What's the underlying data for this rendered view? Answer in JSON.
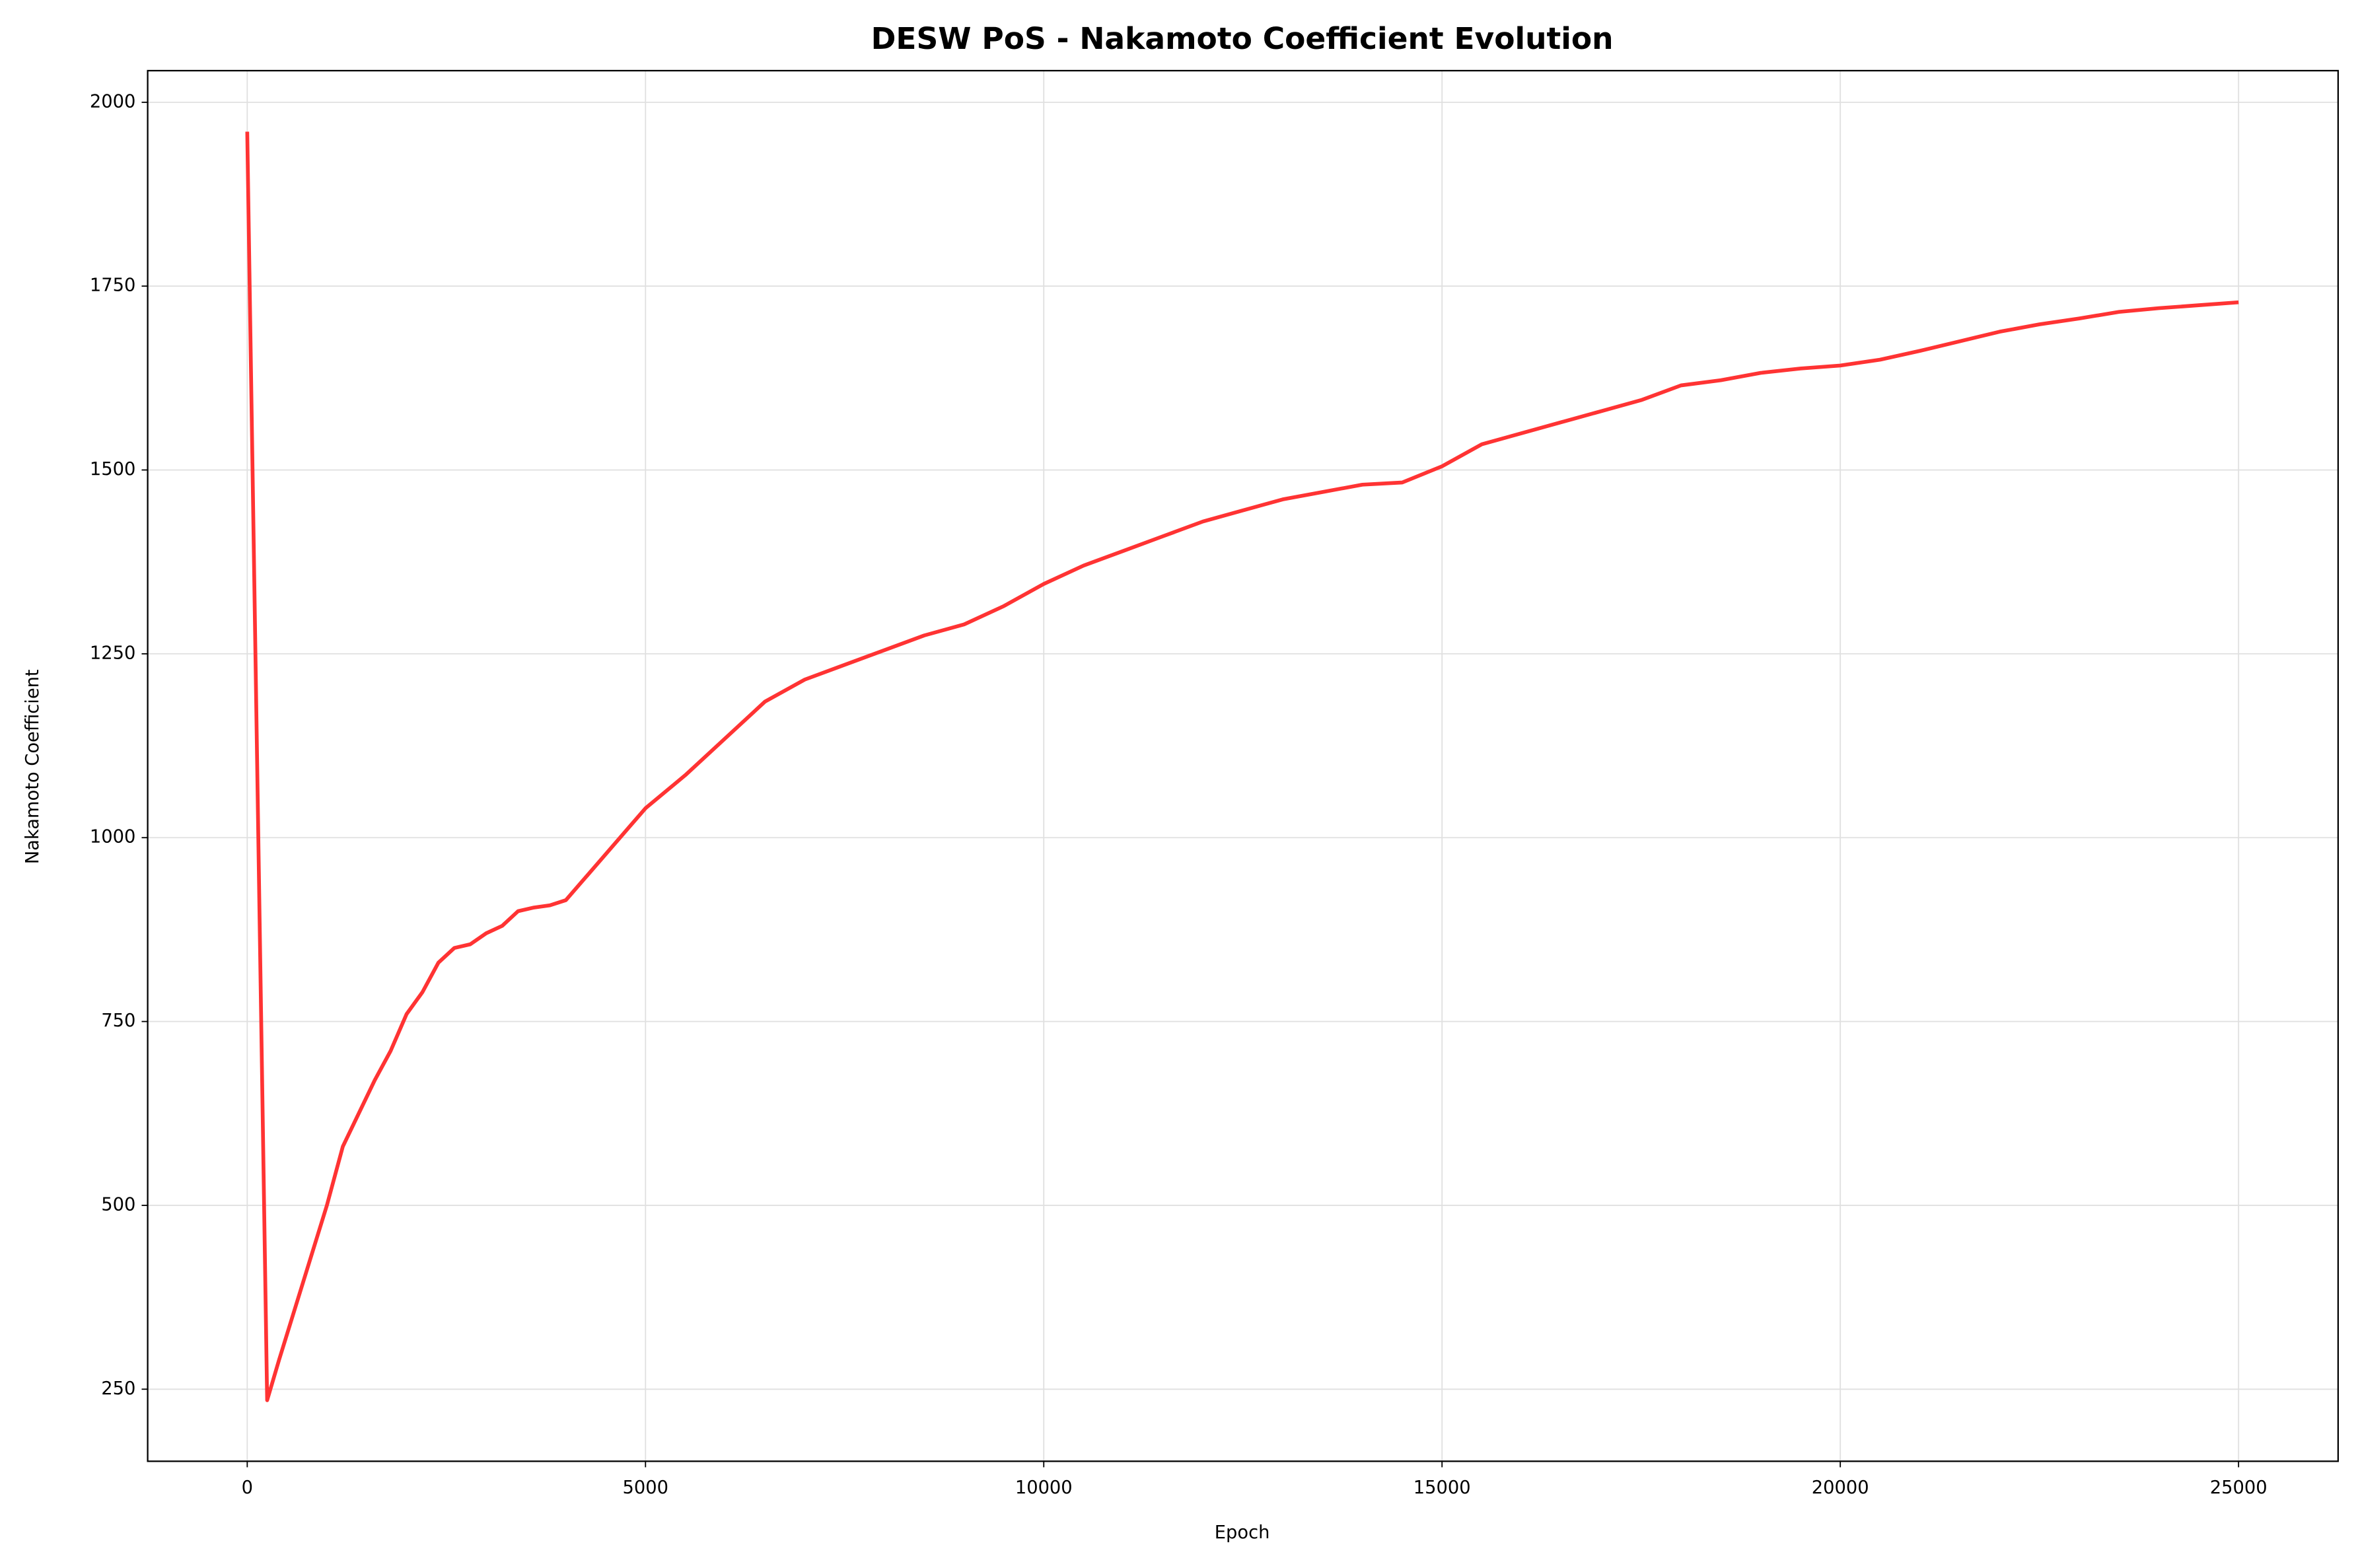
{
  "chart_data": {
    "type": "line",
    "title": "DESW PoS - Nakamoto Coefficient Evolution",
    "x_label": "Epoch",
    "y_label": "Nakamoto Coefficient",
    "x": [
      0,
      250,
      400,
      600,
      800,
      1000,
      1200,
      1400,
      1600,
      1800,
      2000,
      2200,
      2400,
      2600,
      2800,
      3000,
      3200,
      3400,
      3600,
      3800,
      4000,
      4200,
      4400,
      4600,
      4800,
      5000,
      5500,
      6000,
      6500,
      7000,
      7500,
      8000,
      8500,
      9000,
      9500,
      10000,
      10500,
      11000,
      11500,
      12000,
      12500,
      13000,
      13500,
      14000,
      14500,
      15000,
      15500,
      16000,
      16500,
      17000,
      17500,
      18000,
      18500,
      19000,
      19500,
      20000,
      20500,
      21000,
      21500,
      22000,
      22500,
      23000,
      23500,
      24000,
      24500,
      25000
    ],
    "series": [
      {
        "color": "#ff3333",
        "values": [
          1960,
          235,
          290,
          360,
          430,
          500,
          580,
          625,
          670,
          710,
          760,
          790,
          830,
          850,
          855,
          870,
          880,
          900,
          905,
          908,
          915,
          940,
          965,
          990,
          1015,
          1040,
          1085,
          1135,
          1185,
          1215,
          1235,
          1255,
          1275,
          1290,
          1315,
          1345,
          1370,
          1390,
          1410,
          1430,
          1445,
          1460,
          1470,
          1480,
          1483,
          1505,
          1535,
          1550,
          1565,
          1580,
          1595,
          1615,
          1622,
          1632,
          1638,
          1642,
          1650,
          1662,
          1675,
          1688,
          1698,
          1706,
          1715,
          1720,
          1724,
          1728
        ]
      }
    ],
    "xlim": [
      -1250,
      26250
    ],
    "ylim": [
      152,
      2043
    ],
    "xticks": [
      0,
      5000,
      10000,
      15000,
      20000,
      25000
    ],
    "yticks": [
      250,
      500,
      750,
      1000,
      1250,
      1500,
      1750,
      2000
    ],
    "grid": true
  }
}
